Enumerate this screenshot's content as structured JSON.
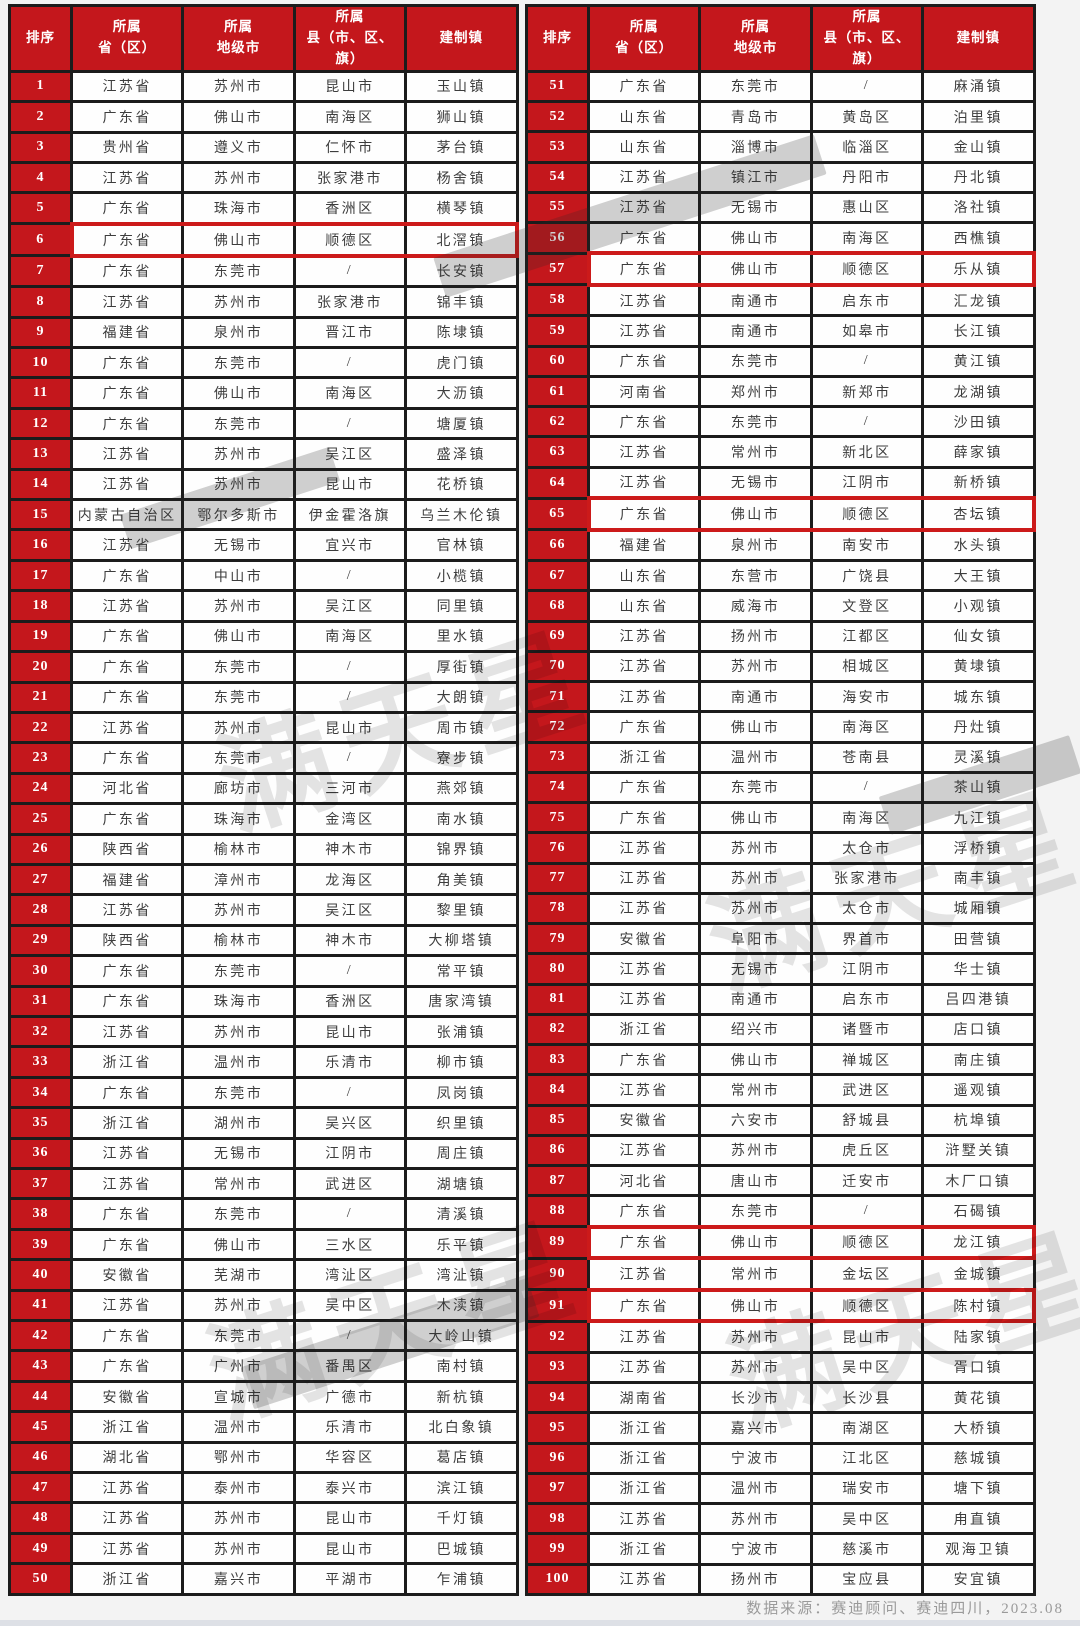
{
  "columns": [
    "排序",
    "所属\n省（区）",
    "所属\n地级市",
    "所属\n县（市、区、旗）",
    "建制镇"
  ],
  "rows_left": [
    [
      "1",
      "江苏省",
      "苏州市",
      "昆山市",
      "玉山镇"
    ],
    [
      "2",
      "广东省",
      "佛山市",
      "南海区",
      "狮山镇"
    ],
    [
      "3",
      "贵州省",
      "遵义市",
      "仁怀市",
      "茅台镇"
    ],
    [
      "4",
      "江苏省",
      "苏州市",
      "张家港市",
      "杨舍镇"
    ],
    [
      "5",
      "广东省",
      "珠海市",
      "香洲区",
      "横琴镇"
    ],
    [
      "6",
      "广东省",
      "佛山市",
      "顺德区",
      "北滘镇"
    ],
    [
      "7",
      "广东省",
      "东莞市",
      "/",
      "长安镇"
    ],
    [
      "8",
      "江苏省",
      "苏州市",
      "张家港市",
      "锦丰镇"
    ],
    [
      "9",
      "福建省",
      "泉州市",
      "晋江市",
      "陈埭镇"
    ],
    [
      "10",
      "广东省",
      "东莞市",
      "/",
      "虎门镇"
    ],
    [
      "11",
      "广东省",
      "佛山市",
      "南海区",
      "大沥镇"
    ],
    [
      "12",
      "广东省",
      "东莞市",
      "/",
      "塘厦镇"
    ],
    [
      "13",
      "江苏省",
      "苏州市",
      "吴江区",
      "盛泽镇"
    ],
    [
      "14",
      "江苏省",
      "苏州市",
      "昆山市",
      "花桥镇"
    ],
    [
      "15",
      "内蒙古自治区",
      "鄂尔多斯市",
      "伊金霍洛旗",
      "乌兰木伦镇"
    ],
    [
      "16",
      "江苏省",
      "无锡市",
      "宜兴市",
      "官林镇"
    ],
    [
      "17",
      "广东省",
      "中山市",
      "/",
      "小榄镇"
    ],
    [
      "18",
      "江苏省",
      "苏州市",
      "吴江区",
      "同里镇"
    ],
    [
      "19",
      "广东省",
      "佛山市",
      "南海区",
      "里水镇"
    ],
    [
      "20",
      "广东省",
      "东莞市",
      "/",
      "厚街镇"
    ],
    [
      "21",
      "广东省",
      "东莞市",
      "/",
      "大朗镇"
    ],
    [
      "22",
      "江苏省",
      "苏州市",
      "昆山市",
      "周市镇"
    ],
    [
      "23",
      "广东省",
      "东莞市",
      "/",
      "寮步镇"
    ],
    [
      "24",
      "河北省",
      "廊坊市",
      "三河市",
      "燕郊镇"
    ],
    [
      "25",
      "广东省",
      "珠海市",
      "金湾区",
      "南水镇"
    ],
    [
      "26",
      "陕西省",
      "榆林市",
      "神木市",
      "锦界镇"
    ],
    [
      "27",
      "福建省",
      "漳州市",
      "龙海区",
      "角美镇"
    ],
    [
      "28",
      "江苏省",
      "苏州市",
      "吴江区",
      "黎里镇"
    ],
    [
      "29",
      "陕西省",
      "榆林市",
      "神木市",
      "大柳塔镇"
    ],
    [
      "30",
      "广东省",
      "东莞市",
      "/",
      "常平镇"
    ],
    [
      "31",
      "广东省",
      "珠海市",
      "香洲区",
      "唐家湾镇"
    ],
    [
      "32",
      "江苏省",
      "苏州市",
      "昆山市",
      "张浦镇"
    ],
    [
      "33",
      "浙江省",
      "温州市",
      "乐清市",
      "柳市镇"
    ],
    [
      "34",
      "广东省",
      "东莞市",
      "/",
      "凤岗镇"
    ],
    [
      "35",
      "浙江省",
      "湖州市",
      "吴兴区",
      "织里镇"
    ],
    [
      "36",
      "江苏省",
      "无锡市",
      "江阴市",
      "周庄镇"
    ],
    [
      "37",
      "江苏省",
      "常州市",
      "武进区",
      "湖塘镇"
    ],
    [
      "38",
      "广东省",
      "东莞市",
      "/",
      "清溪镇"
    ],
    [
      "39",
      "广东省",
      "佛山市",
      "三水区",
      "乐平镇"
    ],
    [
      "40",
      "安徽省",
      "芜湖市",
      "湾沚区",
      "湾沚镇"
    ],
    [
      "41",
      "江苏省",
      "苏州市",
      "吴中区",
      "木渎镇"
    ],
    [
      "42",
      "广东省",
      "东莞市",
      "/",
      "大岭山镇"
    ],
    [
      "43",
      "广东省",
      "广州市",
      "番禺区",
      "南村镇"
    ],
    [
      "44",
      "安徽省",
      "宣城市",
      "广德市",
      "新杭镇"
    ],
    [
      "45",
      "浙江省",
      "温州市",
      "乐清市",
      "北白象镇"
    ],
    [
      "46",
      "湖北省",
      "鄂州市",
      "华容区",
      "葛店镇"
    ],
    [
      "47",
      "江苏省",
      "泰州市",
      "泰兴市",
      "滨江镇"
    ],
    [
      "48",
      "江苏省",
      "苏州市",
      "昆山市",
      "千灯镇"
    ],
    [
      "49",
      "江苏省",
      "苏州市",
      "昆山市",
      "巴城镇"
    ],
    [
      "50",
      "浙江省",
      "嘉兴市",
      "平湖市",
      "乍浦镇"
    ]
  ],
  "rows_right": [
    [
      "51",
      "广东省",
      "东莞市",
      "/",
      "麻涌镇"
    ],
    [
      "52",
      "山东省",
      "青岛市",
      "黄岛区",
      "泊里镇"
    ],
    [
      "53",
      "山东省",
      "淄博市",
      "临淄区",
      "金山镇"
    ],
    [
      "54",
      "江苏省",
      "镇江市",
      "丹阳市",
      "丹北镇"
    ],
    [
      "55",
      "江苏省",
      "无锡市",
      "惠山区",
      "洛社镇"
    ],
    [
      "56",
      "广东省",
      "佛山市",
      "南海区",
      "西樵镇"
    ],
    [
      "57",
      "广东省",
      "佛山市",
      "顺德区",
      "乐从镇"
    ],
    [
      "58",
      "江苏省",
      "南通市",
      "启东市",
      "汇龙镇"
    ],
    [
      "59",
      "江苏省",
      "南通市",
      "如皋市",
      "长江镇"
    ],
    [
      "60",
      "广东省",
      "东莞市",
      "/",
      "黄江镇"
    ],
    [
      "61",
      "河南省",
      "郑州市",
      "新郑市",
      "龙湖镇"
    ],
    [
      "62",
      "广东省",
      "东莞市",
      "/",
      "沙田镇"
    ],
    [
      "63",
      "江苏省",
      "常州市",
      "新北区",
      "薛家镇"
    ],
    [
      "64",
      "江苏省",
      "无锡市",
      "江阴市",
      "新桥镇"
    ],
    [
      "65",
      "广东省",
      "佛山市",
      "顺德区",
      "杏坛镇"
    ],
    [
      "66",
      "福建省",
      "泉州市",
      "南安市",
      "水头镇"
    ],
    [
      "67",
      "山东省",
      "东营市",
      "广饶县",
      "大王镇"
    ],
    [
      "68",
      "山东省",
      "威海市",
      "文登区",
      "小观镇"
    ],
    [
      "69",
      "江苏省",
      "扬州市",
      "江都区",
      "仙女镇"
    ],
    [
      "70",
      "江苏省",
      "苏州市",
      "相城区",
      "黄埭镇"
    ],
    [
      "71",
      "江苏省",
      "南通市",
      "海安市",
      "城东镇"
    ],
    [
      "72",
      "广东省",
      "佛山市",
      "南海区",
      "丹灶镇"
    ],
    [
      "73",
      "浙江省",
      "温州市",
      "苍南县",
      "灵溪镇"
    ],
    [
      "74",
      "广东省",
      "东莞市",
      "/",
      "茶山镇"
    ],
    [
      "75",
      "广东省",
      "佛山市",
      "南海区",
      "九江镇"
    ],
    [
      "76",
      "江苏省",
      "苏州市",
      "太仓市",
      "浮桥镇"
    ],
    [
      "77",
      "江苏省",
      "苏州市",
      "张家港市",
      "南丰镇"
    ],
    [
      "78",
      "江苏省",
      "苏州市",
      "太仓市",
      "城厢镇"
    ],
    [
      "79",
      "安徽省",
      "阜阳市",
      "界首市",
      "田营镇"
    ],
    [
      "80",
      "江苏省",
      "无锡市",
      "江阴市",
      "华士镇"
    ],
    [
      "81",
      "江苏省",
      "南通市",
      "启东市",
      "吕四港镇"
    ],
    [
      "82",
      "浙江省",
      "绍兴市",
      "诸暨市",
      "店口镇"
    ],
    [
      "83",
      "广东省",
      "佛山市",
      "禅城区",
      "南庄镇"
    ],
    [
      "84",
      "江苏省",
      "常州市",
      "武进区",
      "遥观镇"
    ],
    [
      "85",
      "安徽省",
      "六安市",
      "舒城县",
      "杭埠镇"
    ],
    [
      "86",
      "江苏省",
      "苏州市",
      "虎丘区",
      "浒墅关镇"
    ],
    [
      "87",
      "河北省",
      "唐山市",
      "迁安市",
      "木厂口镇"
    ],
    [
      "88",
      "广东省",
      "东莞市",
      "/",
      "石碣镇"
    ],
    [
      "89",
      "广东省",
      "佛山市",
      "顺德区",
      "龙江镇"
    ],
    [
      "90",
      "江苏省",
      "常州市",
      "金坛区",
      "金城镇"
    ],
    [
      "91",
      "广东省",
      "佛山市",
      "顺德区",
      "陈村镇"
    ],
    [
      "92",
      "江苏省",
      "苏州市",
      "昆山市",
      "陆家镇"
    ],
    [
      "93",
      "江苏省",
      "苏州市",
      "吴中区",
      "胥口镇"
    ],
    [
      "94",
      "湖南省",
      "长沙市",
      "长沙县",
      "黄花镇"
    ],
    [
      "95",
      "浙江省",
      "嘉兴市",
      "南湖区",
      "大桥镇"
    ],
    [
      "96",
      "浙江省",
      "宁波市",
      "江北区",
      "慈城镇"
    ],
    [
      "97",
      "浙江省",
      "温州市",
      "瑞安市",
      "塘下镇"
    ],
    [
      "98",
      "江苏省",
      "苏州市",
      "吴中区",
      "甪直镇"
    ],
    [
      "99",
      "浙江省",
      "宁波市",
      "慈溪市",
      "观海卫镇"
    ],
    [
      "100",
      "江苏省",
      "扬州市",
      "宝应县",
      "安宜镇"
    ]
  ],
  "highlighted_ranks": [
    6,
    57,
    65,
    89,
    91
  ],
  "footer": "数据来源：赛迪顾问、赛迪四川，2023.08",
  "watermark": "满天星",
  "colors": {
    "header_red": "#c4171c",
    "highlight_red": "#cc1a1a",
    "border_black": "#1c1c1c"
  }
}
